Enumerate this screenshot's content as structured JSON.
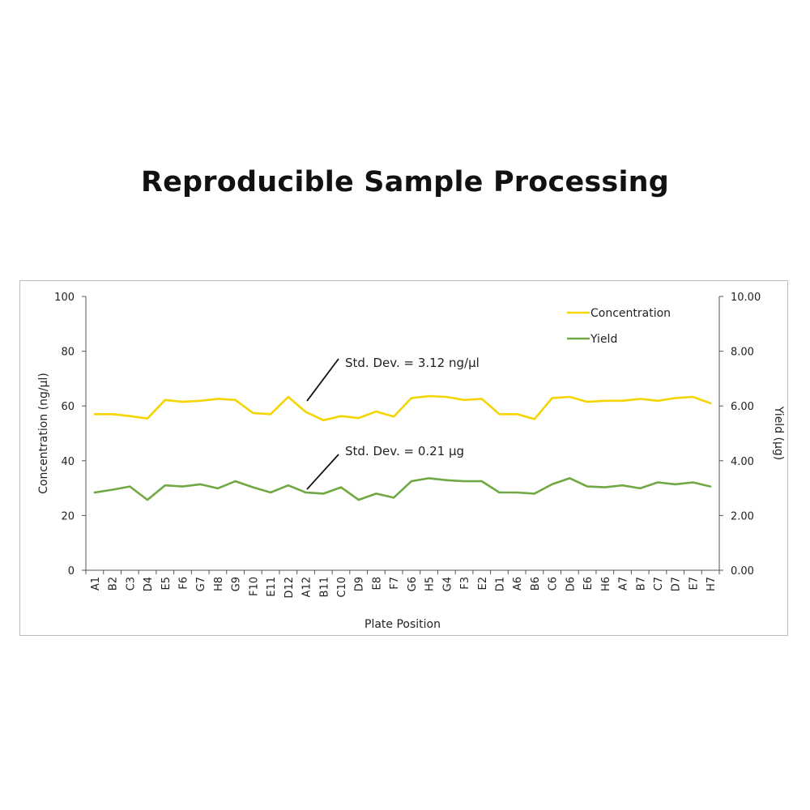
{
  "page": {
    "title": "Reproducible Sample Processing"
  },
  "colors": {
    "concentration": "#f5d400",
    "yield": "#70a843",
    "axis": "#555555",
    "frame": "#bdbdbd",
    "text": "#222222"
  },
  "chart_data": {
    "type": "line",
    "xlabel": "Plate Position",
    "ylabel_left": "Concentration (ng/µl)",
    "ylabel_right": "Yield (µg)",
    "ylim_left": [
      0,
      100
    ],
    "ylim_right": [
      0,
      10
    ],
    "yticks_left": [
      "0",
      "20",
      "40",
      "60",
      "80",
      "100"
    ],
    "yticks_right": [
      "0.00",
      "2.00",
      "4.00",
      "6.00",
      "8.00",
      "10.00"
    ],
    "grid": false,
    "legend_position": "top-right",
    "categories": [
      "A1",
      "B2",
      "C3",
      "D4",
      "E5",
      "F6",
      "G7",
      "H8",
      "G9",
      "F10",
      "E11",
      "D12",
      "A12",
      "B11",
      "C10",
      "D9",
      "E8",
      "F7",
      "G6",
      "H5",
      "G4",
      "F3",
      "E2",
      "D1",
      "A6",
      "B6",
      "C6",
      "D6",
      "E6",
      "H6",
      "A7",
      "B7",
      "C7",
      "D7",
      "E7",
      "H7"
    ],
    "series": [
      {
        "name": "Concentration",
        "axis": "left",
        "values": [
          57.0,
          57.0,
          56.3,
          55.4,
          62.2,
          61.5,
          61.9,
          62.6,
          62.2,
          57.4,
          57.0,
          63.3,
          57.8,
          54.8,
          56.3,
          55.6,
          58.0,
          56.1,
          62.9,
          63.6,
          63.3,
          62.2,
          62.6,
          57.0,
          57.0,
          55.2,
          62.9,
          63.3,
          61.5,
          61.9,
          61.9,
          62.6,
          61.9,
          62.9,
          63.3,
          61.0
        ]
      },
      {
        "name": "Yield",
        "axis": "right",
        "values": [
          2.84,
          2.94,
          3.06,
          2.57,
          3.1,
          3.06,
          3.14,
          2.99,
          3.25,
          3.03,
          2.84,
          3.1,
          2.84,
          2.8,
          3.03,
          2.57,
          2.8,
          2.65,
          3.25,
          3.36,
          3.29,
          3.25,
          3.25,
          2.84,
          2.84,
          2.8,
          3.14,
          3.36,
          3.06,
          3.03,
          3.1,
          2.99,
          3.21,
          3.14,
          3.21,
          3.06
        ]
      }
    ],
    "annotations": [
      {
        "text": "Std. Dev. = 3.12 ng/µl",
        "series": "Concentration"
      },
      {
        "text": "Std. Dev. = 0.21 µg",
        "series": "Yield"
      }
    ]
  }
}
